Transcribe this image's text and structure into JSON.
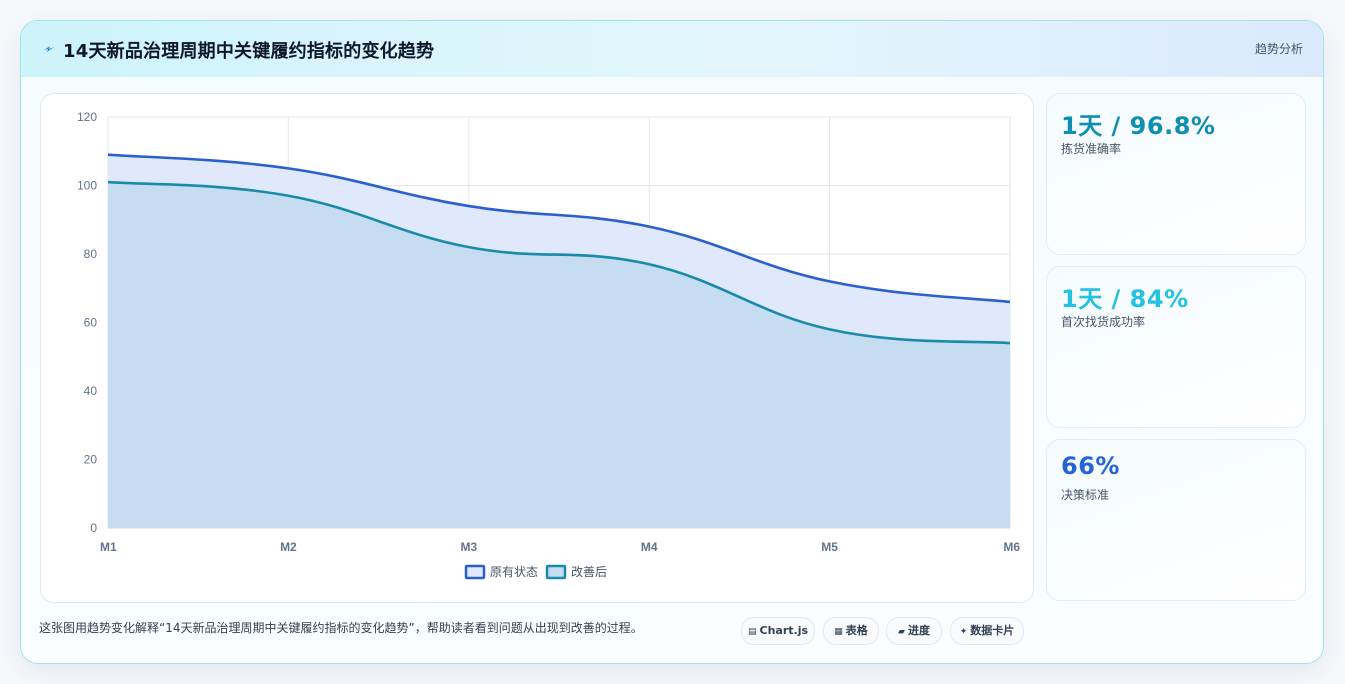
{
  "header": {
    "title": "14天新品治理周期中关键履约指标的变化趋势",
    "badge": "趋势分析"
  },
  "kpis": [
    {
      "value": "1天 / 96.8%",
      "label": "拣货准确率",
      "color": "#0e8fb0"
    },
    {
      "value": "1天 / 84%",
      "label": "首次找货成功率",
      "color": "#22c2e0"
    },
    {
      "value": "66%",
      "label": "决策标准",
      "color": "#2563d6"
    }
  ],
  "caption": "这张图用趋势变化解释“14天新品治理周期中关键履约指标的变化趋势”，帮助读者看到问题从出现到改善的过程。",
  "chips": [
    {
      "icon": "chart-icon",
      "glyph": "▤",
      "label": "Chart.js"
    },
    {
      "icon": "table-icon",
      "glyph": "▦",
      "label": "表格"
    },
    {
      "icon": "progress-icon",
      "glyph": "▰",
      "label": "进度"
    },
    {
      "icon": "sparkle-icon",
      "glyph": "✦",
      "label": "数据卡片"
    }
  ],
  "chart_data": {
    "type": "area",
    "categories": [
      "M1",
      "M2",
      "M3",
      "M4",
      "M5",
      "M6"
    ],
    "ylim": [
      0,
      120
    ],
    "yticks": [
      0,
      20,
      40,
      60,
      80,
      100,
      120
    ],
    "grid": true,
    "legend_position": "bottom",
    "series": [
      {
        "name": "原有状态",
        "values": [
          109,
          105,
          94,
          88,
          72,
          66
        ],
        "color": "#2a5fd0",
        "fill": "#e0e9fb"
      },
      {
        "name": "改善后",
        "values": [
          101,
          97,
          82,
          77,
          58,
          54
        ],
        "color": "#1a8aaa",
        "fill": "#c6ddf1"
      }
    ]
  }
}
